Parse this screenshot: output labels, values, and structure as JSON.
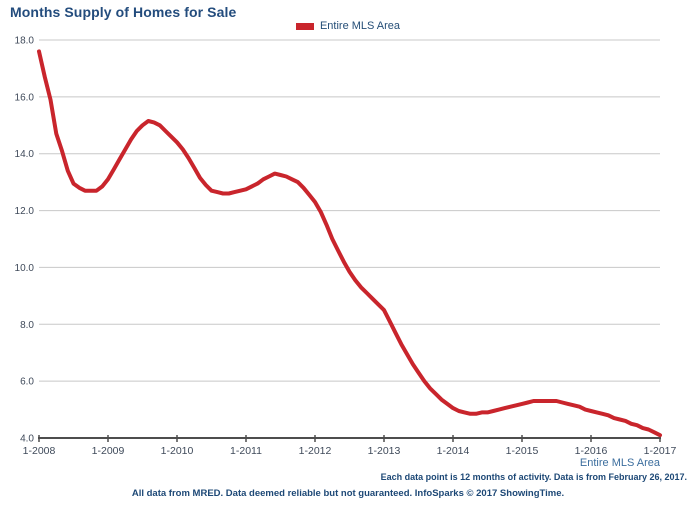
{
  "title": "Months Supply of Homes for Sale",
  "legend": {
    "series_label": "Entire MLS Area",
    "swatch_color": "#C9252C"
  },
  "footnotes": {
    "series_link": "Entire MLS Area",
    "note": "Each data point is 12 months of activity. Data is from February 26, 2017.",
    "disclaimer": "All data from MRED. Data deemed reliable but not guaranteed. InfoSparks © 2017 ShowingTime."
  },
  "colors": {
    "line": "#C9252C",
    "title_text": "#234C7D",
    "footnote_text": "#1D4876",
    "link_blue": "#3C6E9E",
    "grid": "#C8C8C8",
    "axis": "#4D4D4D",
    "tick_label": "#3F4A5A"
  },
  "chart_data": {
    "type": "line",
    "title": "Months Supply of Homes for Sale",
    "series_name": "Entire MLS Area",
    "legend_position": "top-center",
    "grid": "horizontal-only",
    "ylim": [
      4.0,
      18.0
    ],
    "y_tick_values": [
      4,
      6,
      8,
      10,
      12,
      14,
      16,
      18
    ],
    "y_tick_labels": [
      "4.0",
      "6.0",
      "8.0",
      "10.0",
      "12.0",
      "14.0",
      "16.0",
      "18.0"
    ],
    "x_tick_labels": [
      "1-2008",
      "1-2009",
      "1-2010",
      "1-2011",
      "1-2012",
      "1-2013",
      "1-2014",
      "1-2015",
      "1-2016",
      "1-2017"
    ],
    "months_per_tick": 12,
    "x_start": "1-2008",
    "x_end": "1-2017",
    "values": [
      17.6,
      16.7,
      15.9,
      14.7,
      14.1,
      13.4,
      12.95,
      12.8,
      12.7,
      12.7,
      12.7,
      12.85,
      13.1,
      13.45,
      13.8,
      14.15,
      14.5,
      14.8,
      15.0,
      15.15,
      15.1,
      15.0,
      14.8,
      14.6,
      14.4,
      14.15,
      13.85,
      13.5,
      13.15,
      12.9,
      12.7,
      12.65,
      12.6,
      12.6,
      12.65,
      12.7,
      12.75,
      12.85,
      12.95,
      13.1,
      13.2,
      13.3,
      13.25,
      13.2,
      13.1,
      13.0,
      12.8,
      12.55,
      12.3,
      11.95,
      11.5,
      11.0,
      10.6,
      10.2,
      9.85,
      9.55,
      9.3,
      9.1,
      8.9,
      8.7,
      8.5,
      8.1,
      7.7,
      7.3,
      6.95,
      6.6,
      6.3,
      6.0,
      5.75,
      5.55,
      5.35,
      5.2,
      5.05,
      4.95,
      4.9,
      4.85,
      4.85,
      4.9,
      4.9,
      4.95,
      5.0,
      5.05,
      5.1,
      5.15,
      5.2,
      5.25,
      5.3,
      5.3,
      5.3,
      5.3,
      5.3,
      5.25,
      5.2,
      5.15,
      5.1,
      5.0,
      4.95,
      4.9,
      4.85,
      4.8,
      4.7,
      4.65,
      4.6,
      4.5,
      4.45,
      4.35,
      4.3,
      4.2,
      4.1
    ]
  }
}
